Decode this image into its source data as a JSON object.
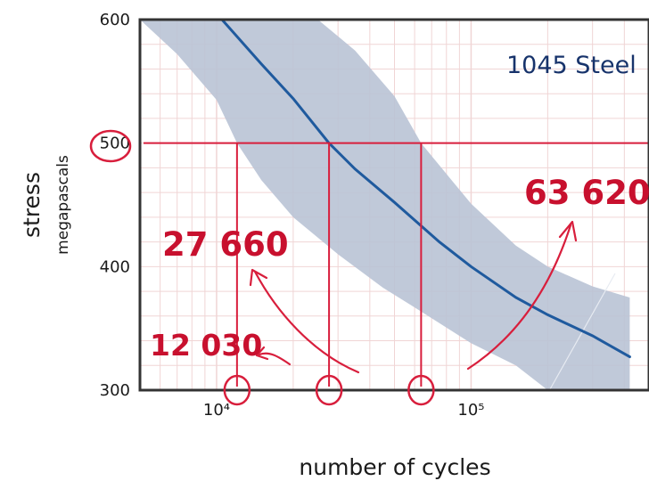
{
  "chart_data": {
    "type": "line",
    "title": "",
    "xlabel": "number of cycles",
    "ylabel": "stress",
    "ylabel_unit": "megapascals",
    "x_scale": "log",
    "xlim": [
      5000,
      500000
    ],
    "ylim": [
      300,
      600
    ],
    "x_ticks": [
      {
        "value": 10000,
        "label": "10⁴"
      },
      {
        "value": 100000,
        "label": "10⁵"
      }
    ],
    "y_ticks": [
      300,
      400,
      500,
      600
    ],
    "grid": true,
    "material_label": "1045 Steel",
    "series": [
      {
        "role": "median-curve",
        "x": [
          10500,
          15000,
          20000,
          27660,
          35000,
          50000,
          75000,
          100000,
          150000,
          200000,
          300000,
          420000
        ],
        "y": [
          600,
          564,
          536,
          500,
          479,
          452,
          420,
          400,
          375,
          361,
          344,
          327
        ]
      }
    ],
    "scatter_band": {
      "upper_x": [
        25000,
        35000,
        50000,
        63620,
        80000,
        100000,
        150000,
        200000,
        300000,
        420000
      ],
      "upper_y": [
        600,
        575,
        538,
        500,
        475,
        451,
        417,
        400,
        384,
        375
      ],
      "lower_x": [
        5000,
        7000,
        10000,
        12030,
        15000,
        20000,
        30000,
        45000,
        60000,
        100000,
        150000,
        200000,
        420000
      ],
      "lower_y": [
        600,
        572,
        535,
        500,
        470,
        440,
        410,
        383,
        367,
        338,
        320,
        300,
        300
      ]
    },
    "reference_stress": 500,
    "reference_stress_label": "500",
    "annotations": [
      {
        "cycles": 12030,
        "label": "12 030"
      },
      {
        "cycles": 27660,
        "label": "27 660"
      },
      {
        "cycles": 63620,
        "label": "63 620"
      }
    ],
    "colors": {
      "curve": "#1f5a9e",
      "band": "#b9c3d5",
      "highlight": "#d81e3c",
      "grid": "#f0d5d5",
      "axis": "#333333",
      "material": "#17336b"
    }
  }
}
